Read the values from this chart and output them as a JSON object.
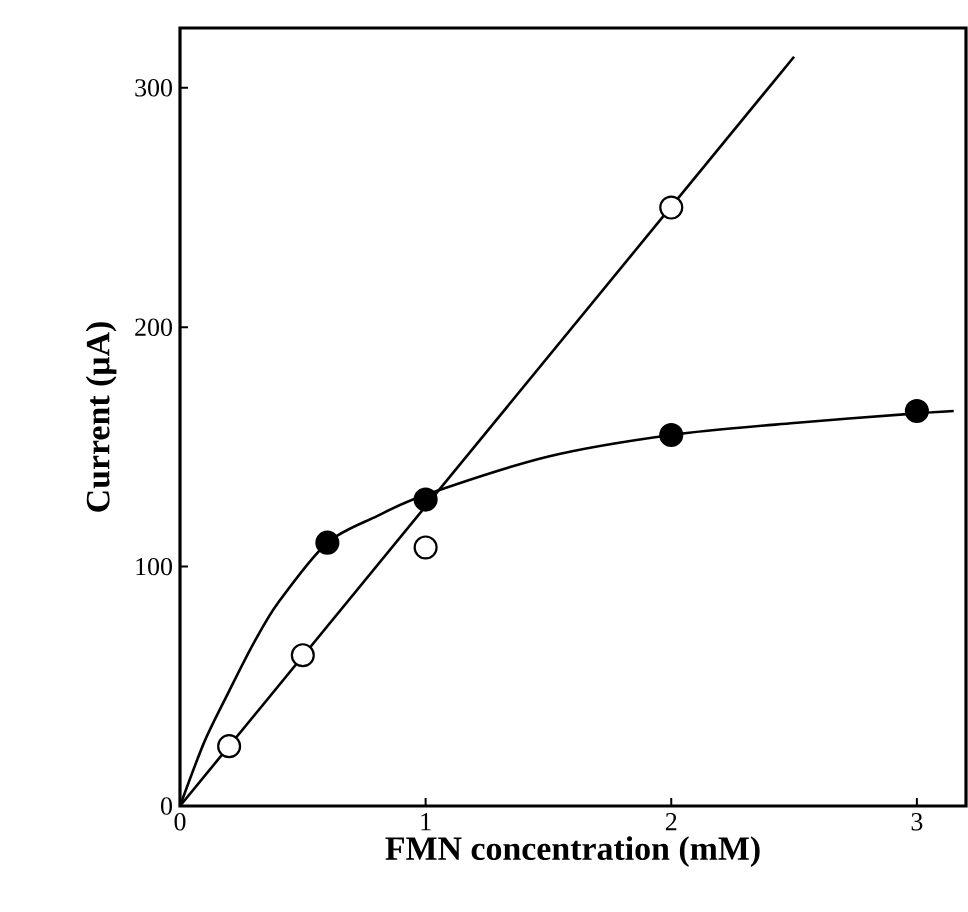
{
  "chart_data": {
    "type": "scatter",
    "xlabel": "FMN concentration (mM)",
    "ylabel": "Current (μA)",
    "xlim": [
      0,
      3.2
    ],
    "ylim": [
      0,
      325
    ],
    "xticks": [
      0,
      1,
      2,
      3
    ],
    "yticks": [
      0,
      100,
      200,
      300
    ],
    "series": [
      {
        "marker": "circle",
        "color": "#ffffff",
        "x": [
          0.2,
          0.5,
          1,
          2
        ],
        "values": [
          25,
          63,
          108,
          250
        ]
      },
      {
        "marker": "circle",
        "color": "#000000",
        "x": [
          0.6,
          1,
          2,
          3
        ],
        "values": [
          110,
          128,
          155,
          165
        ]
      },
      {
        "type": "line",
        "marker": "none",
        "color": "#000000",
        "x": [
          0,
          2.5
        ],
        "values": [
          0,
          313
        ]
      },
      {
        "type": "line",
        "marker": "none",
        "color": "#000000",
        "x": [
          0,
          0.1,
          0.2,
          0.3,
          0.4,
          0.6,
          0.8,
          1,
          1.5,
          2,
          2.5,
          3,
          3.15
        ],
        "values": [
          0,
          27,
          48,
          68,
          85,
          110,
          121,
          130,
          146,
          155,
          160,
          164,
          165
        ]
      }
    ]
  }
}
